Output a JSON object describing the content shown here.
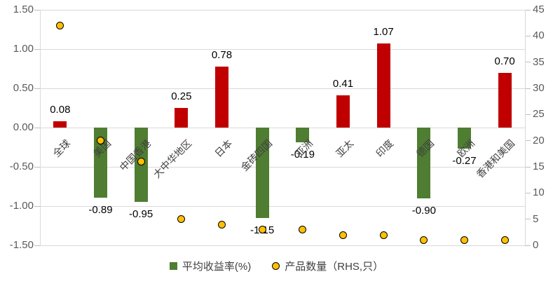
{
  "chart_data": {
    "type": "combo",
    "title": "",
    "categories": [
      "全球",
      "美国",
      "中国香港",
      "大中华地区",
      "日本",
      "金砖四国",
      "亚洲",
      "亚太",
      "印度",
      "德国",
      "欧洲",
      "香港和美国"
    ],
    "series": [
      {
        "name": "平均收益率(%)",
        "type": "bar",
        "axis": "left",
        "values": [
          0.08,
          -0.89,
          -0.95,
          0.25,
          0.78,
          -1.15,
          -0.19,
          0.41,
          1.07,
          -0.9,
          -0.27,
          0.7
        ],
        "data_labels": [
          "0.08",
          "-0.89",
          "-0.95",
          "0.25",
          "0.78",
          "-1.15",
          "-0.19",
          "0.41",
          "1.07",
          "-0.90",
          "-0.27",
          "0.70"
        ],
        "positive_color": "#c00000",
        "negative_color": "#4f7d31"
      },
      {
        "name": "产品数量（RHS,只）",
        "type": "scatter",
        "axis": "right",
        "values": [
          42,
          20,
          16,
          5,
          4,
          3,
          3,
          2,
          2,
          1,
          1,
          1
        ],
        "marker_color": "#ffc000",
        "marker_border_color": "#000000"
      }
    ],
    "left_axis": {
      "min": -1.5,
      "max": 1.5,
      "step": 0.5,
      "tick_labels": [
        "1.50",
        "1.00",
        "0.50",
        "0.00",
        "-0.50",
        "-1.00",
        "-1.50"
      ]
    },
    "right_axis": {
      "min": 0,
      "max": 45,
      "step": 5,
      "tick_labels": [
        "45",
        "40",
        "35",
        "30",
        "25",
        "20",
        "15",
        "10",
        "5",
        "0"
      ]
    },
    "grid": true,
    "legend_position": "bottom",
    "gridline_color": "#d9d9d9",
    "axis_text_color": "#595959",
    "category_text_color": "#404040"
  }
}
